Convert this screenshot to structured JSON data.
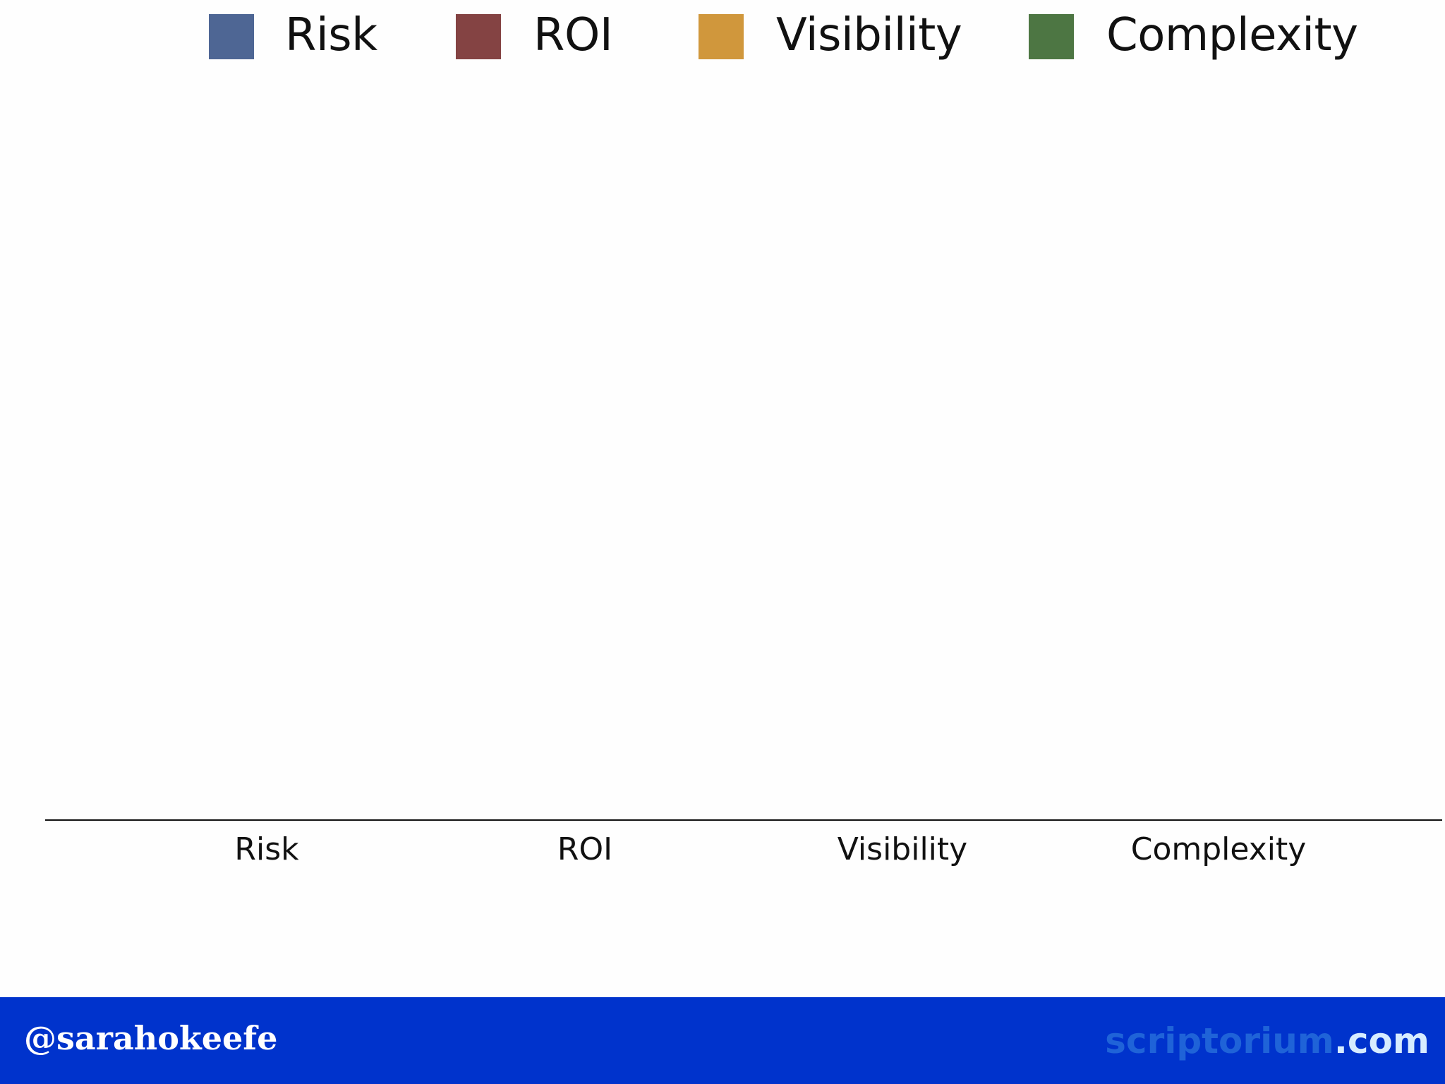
{
  "legend": {
    "items": [
      {
        "label": "Risk",
        "color": "#4e6694"
      },
      {
        "label": "ROI",
        "color": "#844343"
      },
      {
        "label": "Visibility",
        "color": "#d0973c"
      },
      {
        "label": "Complexity",
        "color": "#4d7643"
      }
    ]
  },
  "chart_data": {
    "type": "bar",
    "categories": [
      "Risk",
      "ROI",
      "Visibility",
      "Complexity"
    ],
    "series": [
      {
        "name": "Risk",
        "values": [
          0,
          0,
          0,
          0
        ]
      },
      {
        "name": "ROI",
        "values": [
          0,
          0,
          0,
          0
        ]
      },
      {
        "name": "Visibility",
        "values": [
          0,
          0,
          0,
          0
        ]
      },
      {
        "name": "Complexity",
        "values": [
          0,
          0,
          0,
          0
        ]
      }
    ],
    "title": "",
    "xlabel": "",
    "ylabel": "",
    "ylim": [
      0,
      100
    ],
    "grid": false,
    "legend_position": "top"
  },
  "footer": {
    "handle": "@sarahokeefe",
    "site_main": "scriptorium",
    "site_tld": ".com",
    "background": "#0033cc"
  }
}
